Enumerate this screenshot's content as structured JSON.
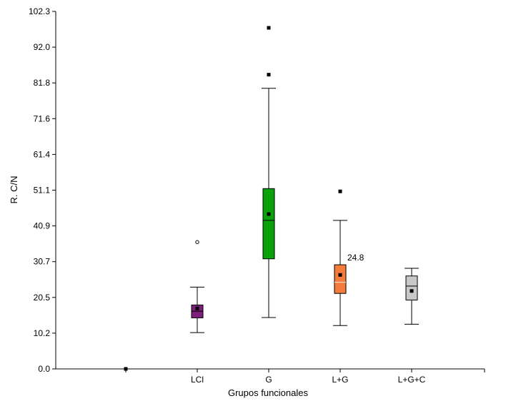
{
  "chart_data": {
    "type": "boxplot",
    "xlabel": "Grupos funcionales",
    "ylabel": "R. C/N",
    "ylim": [
      0.0,
      102.3
    ],
    "yticks": [
      "0.0",
      "10.2",
      "20.5",
      "30.7",
      "40.9",
      "51.1",
      "61.4",
      "71.6",
      "81.8",
      "92.0",
      "102.3"
    ],
    "categories": [
      "",
      "LCl",
      "G",
      "L+G",
      "L+G+C"
    ],
    "boxes": [
      {
        "category": "",
        "min": 0.0,
        "q1": 0.0,
        "median": 0.0,
        "q3": 0.0,
        "max": 0.0,
        "mean": 0.0,
        "outliers_square": [],
        "outliers_circle": [],
        "color": "#000000"
      },
      {
        "category": "LCl",
        "min": 10.4,
        "q1": 14.6,
        "median": 16.5,
        "q3": 18.3,
        "max": 23.4,
        "mean": 17.3,
        "outliers_square": [],
        "outliers_circle": [
          36.3
        ],
        "color": "#7b1f7b"
      },
      {
        "category": "G",
        "min": 14.7,
        "q1": 31.5,
        "median": 42.5,
        "q3": 51.6,
        "max": 80.3,
        "mean": 44.3,
        "outliers_square": [
          84.2,
          97.6
        ],
        "outliers_circle": [],
        "color": "#0aa20a"
      },
      {
        "category": "L+G",
        "min": 12.4,
        "q1": 21.6,
        "median": 24.8,
        "q3": 29.8,
        "max": 42.5,
        "mean": 26.9,
        "outliers_square": [
          50.8
        ],
        "outliers_circle": [],
        "color": "#f47c3c",
        "annotation": "24.8"
      },
      {
        "category": "L+G+C",
        "min": 12.8,
        "q1": 19.7,
        "median": 23.7,
        "q3": 26.6,
        "max": 28.8,
        "mean": 22.3,
        "outliers_square": [],
        "outliers_circle": [],
        "color": "#c8c8c8"
      }
    ]
  }
}
